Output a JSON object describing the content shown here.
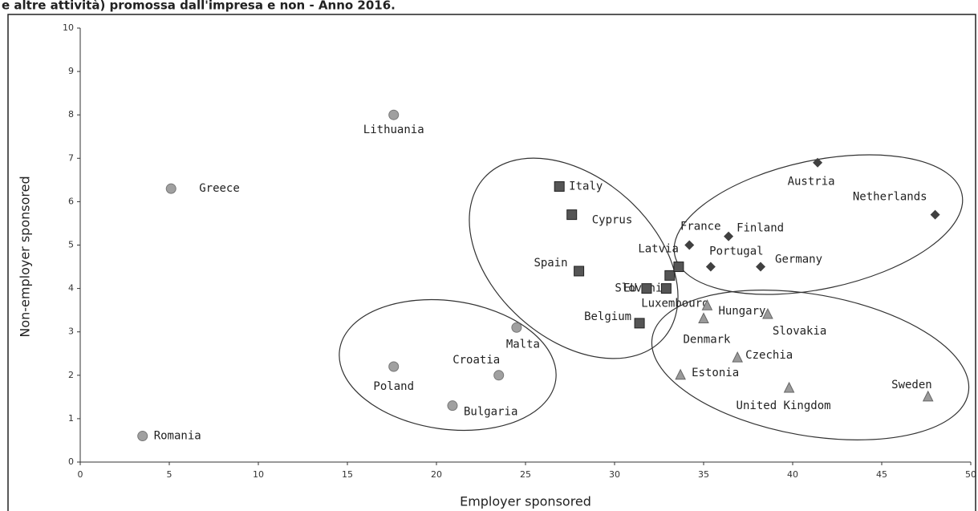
{
  "chart_data": {
    "type": "scatter",
    "title": "e altre attività) promossa dall'impresa e non - Anno 2016.",
    "x_label": "Employer sponsored",
    "y_label": "Non-employer sponsored",
    "xlim": [
      0,
      50
    ],
    "xticks": [
      0,
      5,
      10,
      15,
      20,
      25,
      30,
      35,
      40,
      45,
      50
    ],
    "ylim": [
      0,
      10
    ],
    "yticks": [
      0,
      1,
      2,
      3,
      4,
      5,
      6,
      7,
      8,
      9,
      10
    ],
    "series": [
      {
        "marker": "circle",
        "color": "#a0a0a0",
        "labels": [
          "Romania",
          "Greece",
          "Lithuania",
          "Poland",
          "Bulgaria",
          "Croatia",
          "Malta"
        ],
        "x": [
          3.5,
          5.1,
          17.6,
          17.6,
          20.9,
          23.5,
          24.5
        ],
        "values": [
          0.6,
          6.3,
          8.0,
          2.2,
          1.3,
          2.0,
          3.1
        ]
      },
      {
        "marker": "square",
        "color": "#555555",
        "labels": [
          "Italy",
          "Cyprus",
          "Spain",
          "Slovenia",
          "Latvia",
          "EU",
          "Luxembourg",
          "Belgium"
        ],
        "x": [
          26.9,
          27.6,
          28.0,
          33.1,
          33.6,
          31.8,
          32.9,
          31.4
        ],
        "values": [
          6.35,
          5.7,
          4.4,
          4.3,
          4.5,
          4.0,
          4.0,
          3.2
        ]
      },
      {
        "marker": "diamond",
        "color": "#404040",
        "labels": [
          "France",
          "Finland",
          "Portugal",
          "Germany",
          "Austria",
          "Netherlands"
        ],
        "x": [
          34.2,
          36.4,
          35.4,
          38.2,
          41.4,
          48.0
        ],
        "values": [
          5.0,
          5.2,
          4.5,
          4.5,
          6.9,
          5.7
        ]
      },
      {
        "marker": "triangle",
        "color": "#9a9a9a",
        "labels": [
          "Hungary",
          "Denmark",
          "Slovakia",
          "Czechia",
          "Estonia",
          "United Kingdom",
          "Sweden"
        ],
        "x": [
          35.2,
          35.0,
          38.6,
          36.9,
          33.7,
          39.8,
          47.6
        ],
        "values": [
          3.6,
          3.3,
          3.4,
          2.4,
          2.0,
          1.7,
          1.5
        ]
      }
    ]
  }
}
